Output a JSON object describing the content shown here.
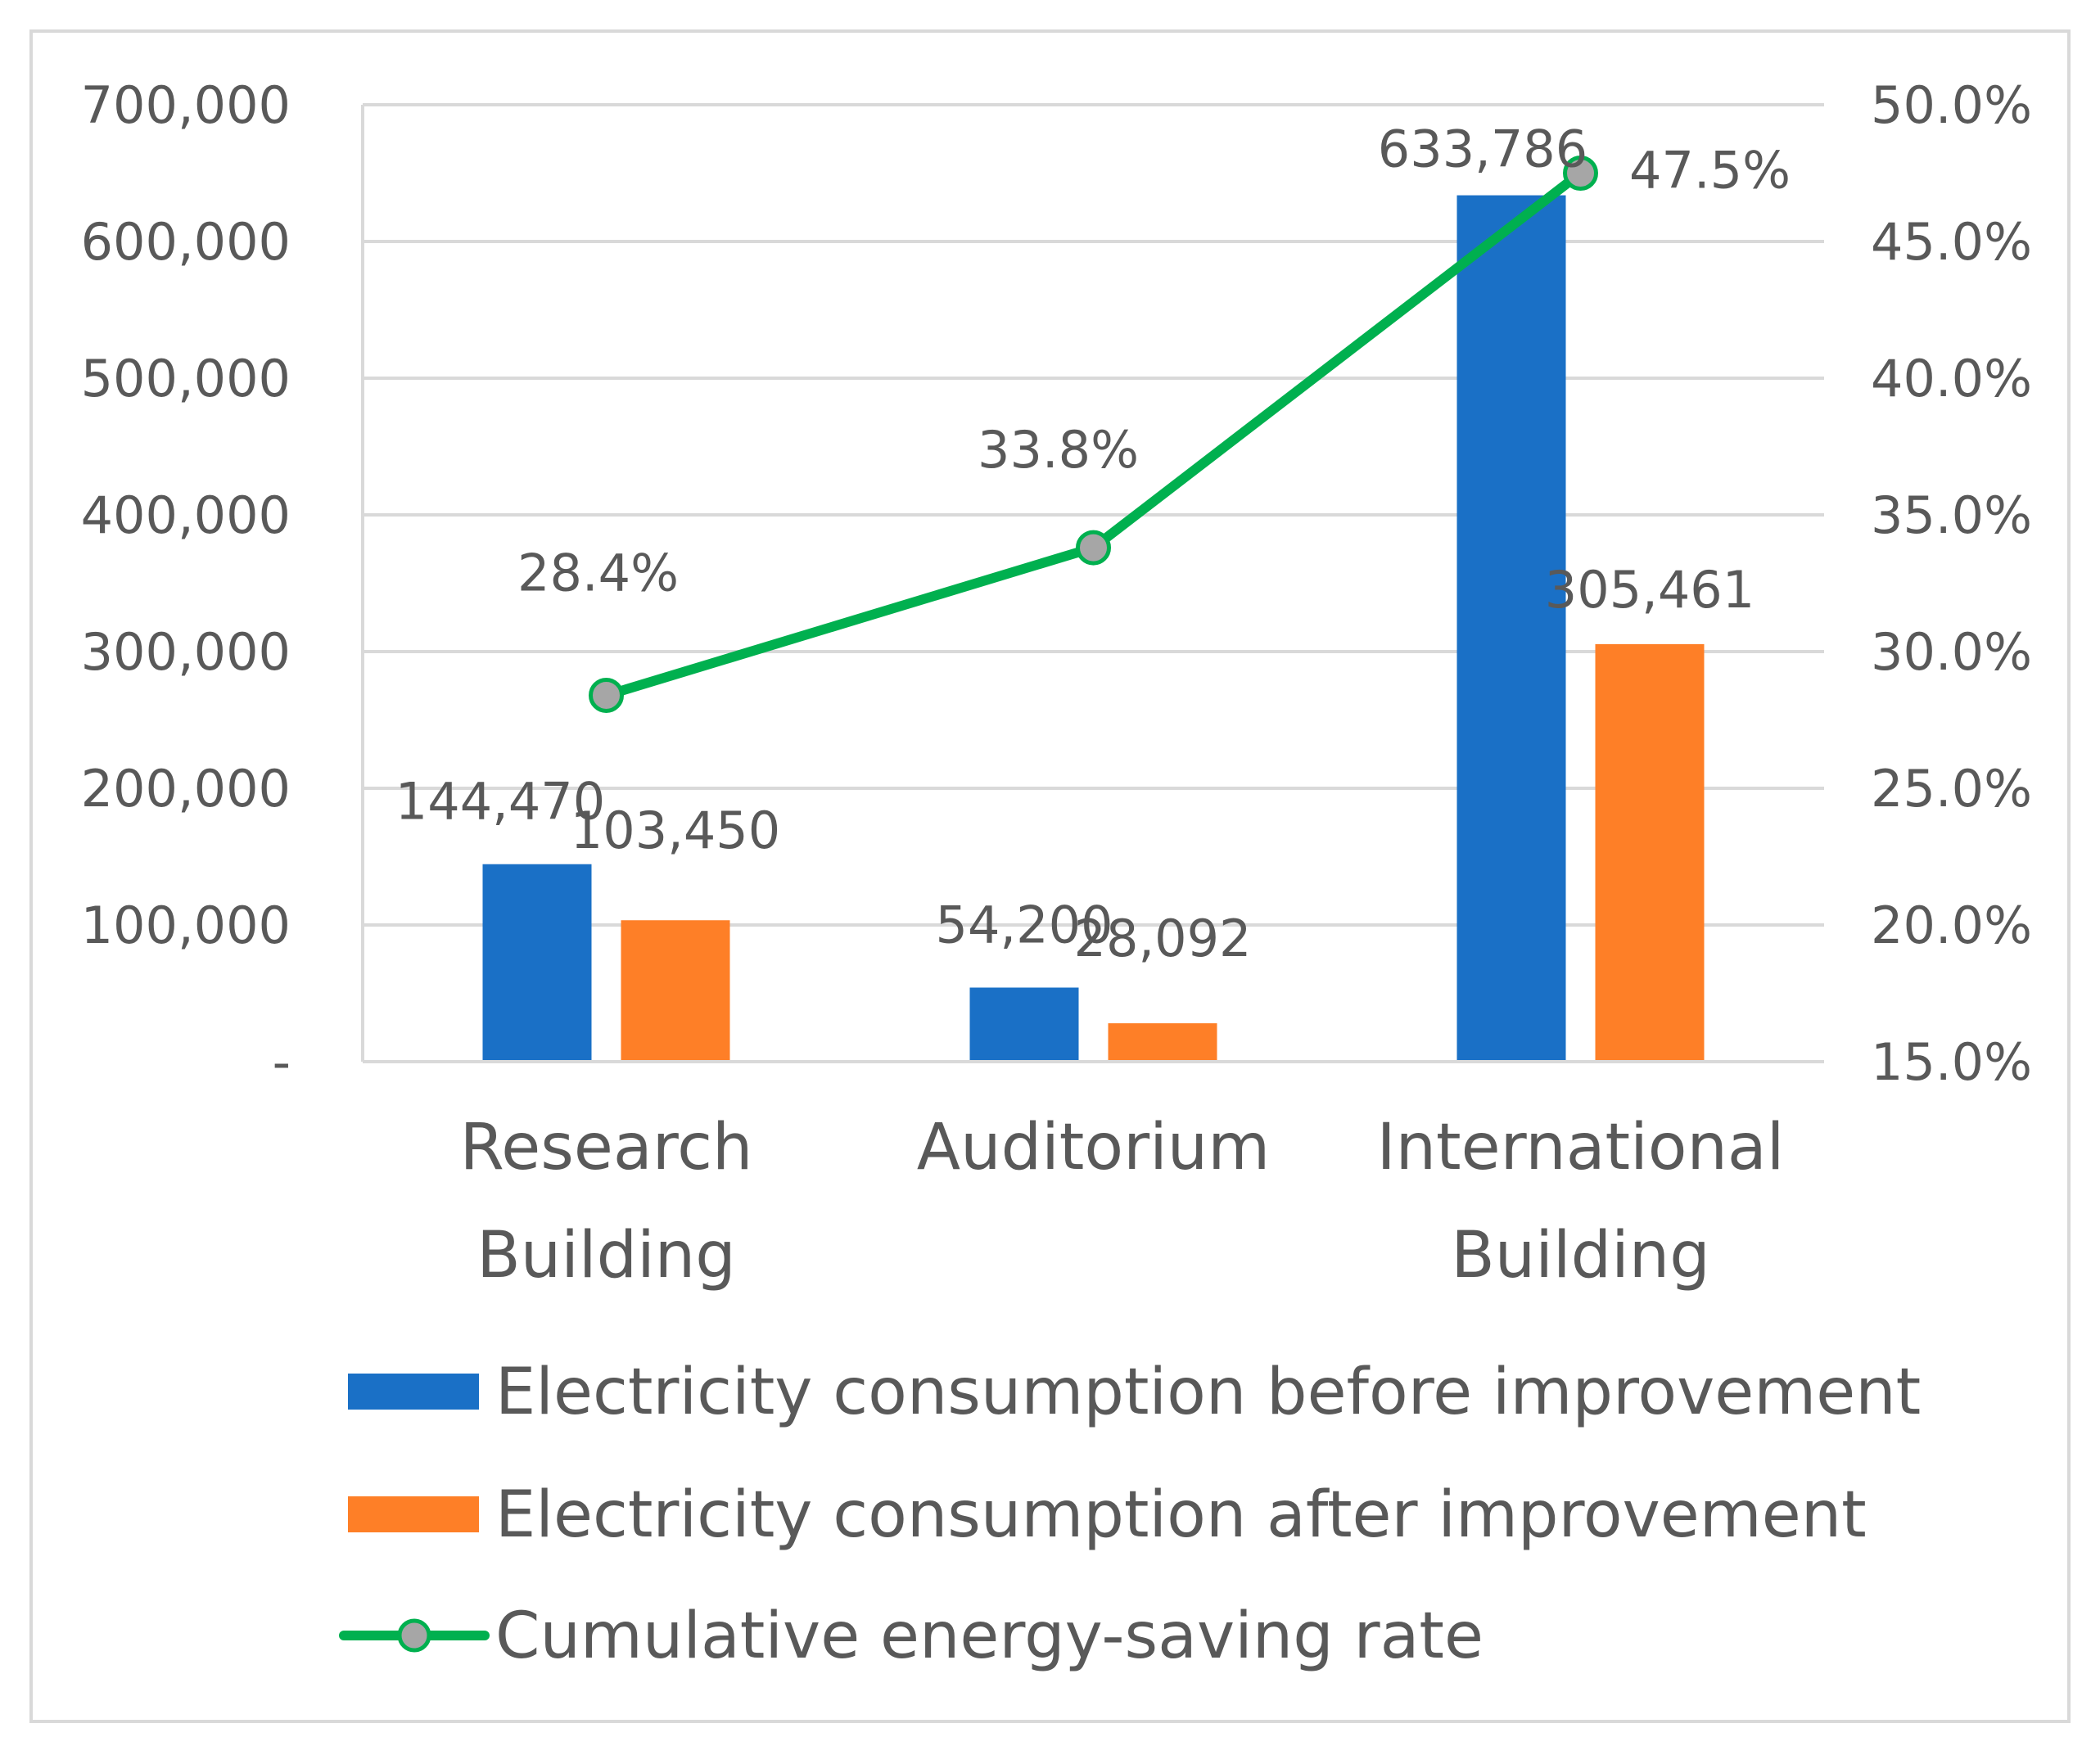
{
  "chart_data": {
    "type": "bar",
    "categories": [
      [
        "Research",
        "Building"
      ],
      [
        "Auditorium"
      ],
      [
        "International",
        "Building"
      ]
    ],
    "series": [
      {
        "name": "Electricity consumption before improvement",
        "kind": "bar",
        "axis": "left",
        "color": "#1a70c6",
        "values": [
          144470,
          54200,
          633786
        ],
        "labels": [
          "144,470",
          "54,200",
          "633,786"
        ]
      },
      {
        "name": "Electricity consumption after improvement",
        "kind": "bar",
        "axis": "left",
        "color": "#fe7f27",
        "values": [
          103450,
          28092,
          305461
        ],
        "labels": [
          "103,450",
          "28,092",
          "305,461"
        ]
      },
      {
        "name": "Cumulative energy-saving rate",
        "kind": "line",
        "axis": "right",
        "color": "#00b04f",
        "marker_color": "#a6a6a6",
        "values": [
          28.4,
          33.8,
          47.5
        ],
        "labels": [
          "28.4%",
          "33.8%",
          "47.5%"
        ]
      }
    ],
    "left_axis": {
      "min": 0,
      "max": 700000,
      "ticks": [
        0,
        100000,
        200000,
        300000,
        400000,
        500000,
        600000,
        700000
      ],
      "tick_labels": [
        "-",
        "100,000",
        "200,000",
        "300,000",
        "400,000",
        "500,000",
        "600,000",
        "700,000"
      ]
    },
    "right_axis": {
      "min": 15,
      "max": 50,
      "ticks": [
        15,
        20,
        25,
        30,
        35,
        40,
        45,
        50
      ],
      "tick_labels": [
        "15.0%",
        "20.0%",
        "25.0%",
        "30.0%",
        "35.0%",
        "40.0%",
        "45.0%",
        "50.0%"
      ]
    },
    "grid": true,
    "legend_position": "bottom",
    "colors": {
      "grid": "#d9d9d9",
      "text": "#595959",
      "border": "#d9d9d9"
    }
  }
}
